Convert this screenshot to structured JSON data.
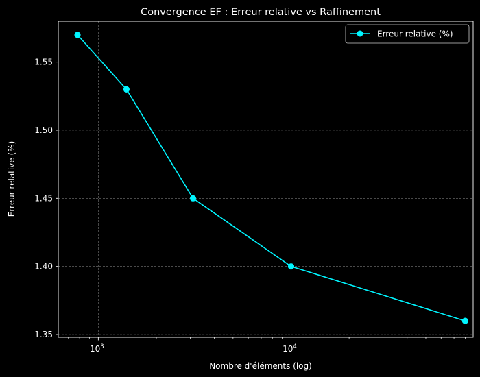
{
  "chart_data": {
    "type": "line",
    "title": "Convergence EF : Erreur relative vs Raffinement",
    "xlabel": "Nombre d'éléments (log)",
    "ylabel": "Erreur relative (%)",
    "x_scale": "log",
    "xlim": [
      620,
      88000
    ],
    "ylim": [
      1.348,
      1.58
    ],
    "x_ticks": [
      {
        "value": 1000,
        "base": "10",
        "exp": "3"
      },
      {
        "value": 10000,
        "base": "10",
        "exp": "4"
      }
    ],
    "y_ticks": [
      {
        "value": 1.35,
        "label": "1.35"
      },
      {
        "value": 1.4,
        "label": "1.40"
      },
      {
        "value": 1.45,
        "label": "1.45"
      },
      {
        "value": 1.5,
        "label": "1.50"
      },
      {
        "value": 1.55,
        "label": "1.55"
      }
    ],
    "grid": true,
    "legend_position": "top-right",
    "colors": {
      "background": "#000000",
      "series": "#00f5ff",
      "grid": "#777777",
      "text": "#ffffff"
    },
    "series": [
      {
        "name": "Erreur relative (%)",
        "x": [
          780,
          1400,
          3100,
          10000,
          80000
        ],
        "y": [
          1.57,
          1.53,
          1.45,
          1.4,
          1.36
        ]
      }
    ]
  }
}
